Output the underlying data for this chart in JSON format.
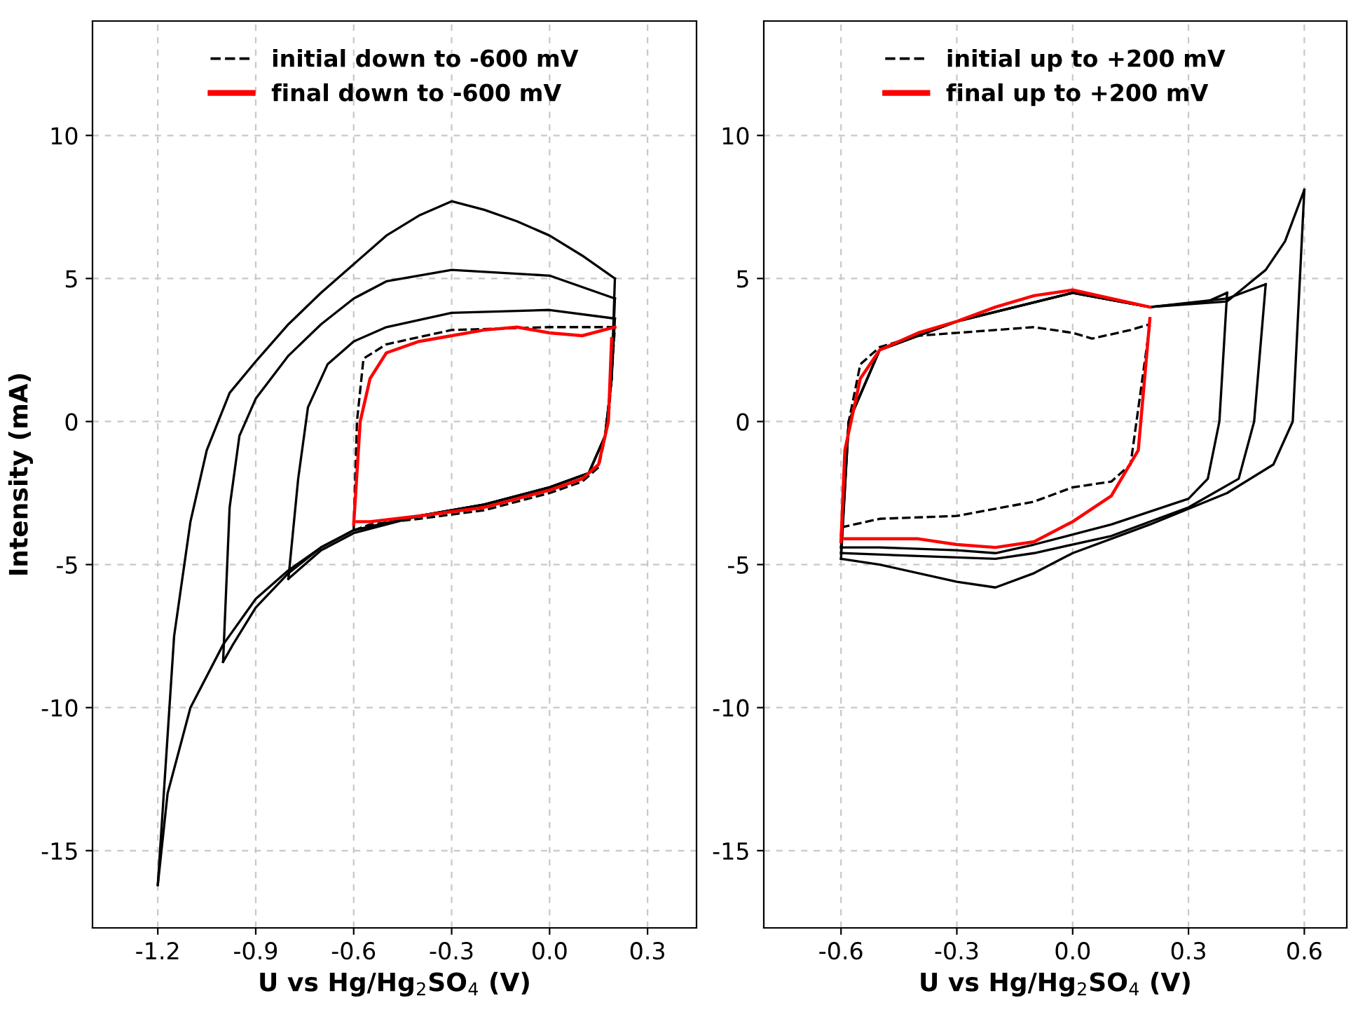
{
  "chart_data": [
    {
      "type": "line",
      "xlabel": "U vs Hg/Hg$_{2}$SO$_{4}$ (V)",
      "ylabel": "Intensity (mA)",
      "xlim": [
        -1.4,
        0.45
      ],
      "ylim": [
        -17.7,
        14
      ],
      "xticks": [
        -1.2,
        -0.9,
        -0.6,
        -0.3,
        {
          "value": 0,
          "label": "0.0"
        },
        0.3
      ],
      "yticks": [
        -15,
        -10,
        -5,
        0,
        5,
        10
      ],
      "grid": true,
      "legend": "top",
      "line_style": "solid",
      "marker": "none",
      "series": [
        {
          "color": "#000000",
          "x": [
            -1.2,
            -1.15,
            -1.1,
            -1.05,
            -0.98,
            -0.9,
            -0.8,
            -0.7,
            -0.6,
            -0.5,
            -0.4,
            -0.3,
            -0.2,
            -0.1,
            0,
            0.1,
            0.2
          ],
          "values": [
            -16.2,
            -7.5,
            -3.5,
            -1.0,
            1.0,
            2.1,
            3.4,
            4.5,
            5.5,
            6.5,
            7.2,
            7.7,
            7.4,
            7.0,
            6.5,
            5.8,
            5.0
          ]
        },
        {
          "color": "#000000",
          "x": [
            -1.2,
            -1.17,
            -1.1,
            -1.0,
            -0.9,
            -0.8,
            -0.7,
            -0.6,
            -0.4,
            -0.2,
            0,
            0.12,
            0.17,
            0.19,
            0.2
          ],
          "values": [
            -16.2,
            -13,
            -10,
            -7.8,
            -6.2,
            -5.2,
            -4.4,
            -3.8,
            -3.3,
            -2.9,
            -2.3,
            -1.8,
            -0.5,
            1.5,
            5.0
          ]
        },
        {
          "color": "#000000",
          "x": [
            -1.0,
            -0.98,
            -0.95,
            -0.9,
            -0.8,
            -0.7,
            -0.6,
            -0.5,
            -0.3,
            0,
            0.2
          ],
          "values": [
            -8.4,
            -3,
            -0.5,
            0.8,
            2.3,
            3.4,
            4.3,
            4.9,
            5.3,
            5.1,
            4.3
          ]
        },
        {
          "color": "#000000",
          "x": [
            -1.0,
            -0.97,
            -0.9,
            -0.8,
            -0.7,
            -0.6,
            -0.4,
            -0.2,
            0,
            0.12,
            0.17,
            0.19,
            0.2
          ],
          "values": [
            -8.4,
            -7.8,
            -6.5,
            -5.3,
            -4.4,
            -3.8,
            -3.3,
            -2.9,
            -2.3,
            -1.8,
            -0.5,
            1.5,
            4.3
          ]
        },
        {
          "color": "#000000",
          "x": [
            -0.8,
            -0.77,
            -0.74,
            -0.68,
            -0.6,
            -0.5,
            -0.3,
            0,
            0.2
          ],
          "values": [
            -5.5,
            -2,
            0.5,
            2.0,
            2.8,
            3.3,
            3.8,
            3.9,
            3.6
          ]
        },
        {
          "color": "#000000",
          "x": [
            -0.8,
            -0.75,
            -0.7,
            -0.6,
            -0.4,
            -0.2,
            0,
            0.12,
            0.17,
            0.19,
            0.2
          ],
          "values": [
            -5.5,
            -5.0,
            -4.5,
            -3.9,
            -3.3,
            -2.9,
            -2.3,
            -1.8,
            -0.5,
            1.5,
            3.6
          ]
        },
        {
          "name": "initial down to -600 mV",
          "color": "#000000",
          "line_style": "dashed",
          "x": [
            -0.6,
            -0.59,
            -0.57,
            -0.5,
            -0.3,
            0,
            0.2
          ],
          "values": [
            -3.8,
            0,
            2.2,
            2.7,
            3.2,
            3.3,
            3.3
          ]
        },
        {
          "color": "#000000",
          "line_style": "dashed",
          "x": [
            -0.6,
            -0.55,
            -0.4,
            -0.2,
            0,
            0.1,
            0.15,
            0.18,
            0.2
          ],
          "values": [
            -3.8,
            -3.6,
            -3.4,
            -3.1,
            -2.5,
            -2.1,
            -1.6,
            0,
            3.3
          ]
        },
        {
          "name": "final down to -600 mV",
          "color": "#ff0000",
          "x": [
            -0.6,
            -0.58,
            -0.55,
            -0.5,
            -0.4,
            -0.3,
            -0.2,
            -0.1,
            0,
            0.1,
            0.2
          ],
          "values": [
            -3.6,
            0,
            1.5,
            2.4,
            2.8,
            3.0,
            3.2,
            3.3,
            3.1,
            3.0,
            3.3
          ]
        },
        {
          "color": "#ff0000",
          "x": [
            -0.59,
            -0.55,
            -0.4,
            -0.2,
            0,
            0.1,
            0.15,
            0.18,
            0.19
          ],
          "values": [
            -3.5,
            -3.5,
            -3.3,
            -3.0,
            -2.4,
            -2.0,
            -1.5,
            0,
            2.9
          ]
        }
      ]
    },
    {
      "type": "line",
      "xlabel": "U vs Hg/Hg$_{2}$SO$_{4}$ (V)",
      "xlim": [
        -0.8,
        0.71
      ],
      "ylim": [
        -17.7,
        14
      ],
      "xticks": [
        -0.6,
        -0.3,
        {
          "value": 0,
          "label": "0.0"
        },
        0.3,
        0.6
      ],
      "yticks": [
        -15,
        -10,
        -5,
        0,
        5,
        10
      ],
      "grid": true,
      "legend": "top",
      "line_style": "solid",
      "marker": "none",
      "series": [
        {
          "color": "#000000",
          "x": [
            -0.6,
            -0.58,
            -0.5,
            -0.3,
            0,
            0.2,
            0.35,
            0.4
          ],
          "values": [
            -4.4,
            0,
            2.5,
            3.5,
            4.5,
            4.0,
            4.2,
            4.5
          ]
        },
        {
          "color": "#000000",
          "x": [
            -0.6,
            -0.5,
            -0.3,
            -0.2,
            -0.1,
            0.1,
            0.3,
            0.35,
            0.38,
            0.4
          ],
          "values": [
            -4.4,
            -4.4,
            -4.5,
            -4.6,
            -4.3,
            -3.6,
            -2.7,
            -2,
            0,
            4.5
          ]
        },
        {
          "color": "#000000",
          "x": [
            -0.6,
            -0.58,
            -0.5,
            -0.3,
            0,
            0.2,
            0.4,
            0.5
          ],
          "values": [
            -4.6,
            0,
            2.5,
            3.5,
            4.5,
            4.0,
            4.3,
            4.8
          ]
        },
        {
          "color": "#000000",
          "x": [
            -0.6,
            -0.4,
            -0.2,
            -0.1,
            0.1,
            0.3,
            0.43,
            0.47,
            0.5
          ],
          "values": [
            -4.6,
            -4.7,
            -4.8,
            -4.6,
            -4.0,
            -3.0,
            -2.0,
            0,
            4.8
          ]
        },
        {
          "color": "#000000",
          "x": [
            -0.6,
            -0.58,
            -0.5,
            -0.3,
            0,
            0.2,
            0.4,
            0.5,
            0.55,
            0.6
          ],
          "values": [
            -4.8,
            0,
            2.5,
            3.5,
            4.5,
            4.0,
            4.2,
            5.3,
            6.3,
            8.1
          ]
        },
        {
          "color": "#000000",
          "x": [
            -0.6,
            -0.5,
            -0.3,
            -0.2,
            -0.1,
            0,
            0.2,
            0.4,
            0.52,
            0.57,
            0.6
          ],
          "values": [
            -4.8,
            -5.0,
            -5.6,
            -5.8,
            -5.3,
            -4.6,
            -3.6,
            -2.5,
            -1.5,
            0,
            8.1
          ]
        },
        {
          "name": "initial up to +200 mV",
          "color": "#000000",
          "line_style": "dashed",
          "x": [
            -0.6,
            -0.58,
            -0.55,
            -0.5,
            -0.4,
            -0.2,
            -0.1,
            0,
            0.05,
            0.15,
            0.2
          ],
          "values": [
            -4.0,
            0,
            2.0,
            2.6,
            3.0,
            3.2,
            3.3,
            3.1,
            2.9,
            3.2,
            3.4
          ]
        },
        {
          "color": "#000000",
          "line_style": "dashed",
          "x": [
            -0.6,
            -0.5,
            -0.3,
            -0.1,
            0,
            0.1,
            0.15,
            0.2
          ],
          "values": [
            -3.7,
            -3.4,
            -3.3,
            -2.8,
            -2.3,
            -2.1,
            -1.5,
            3.4
          ]
        },
        {
          "name": "final up to +200 mV",
          "color": "#ff0000",
          "x": [
            -0.6,
            -0.59,
            -0.55,
            -0.5,
            -0.4,
            -0.3,
            -0.2,
            -0.1,
            0,
            0.1,
            0.2
          ],
          "values": [
            -4.2,
            -1,
            1.5,
            2.5,
            3.1,
            3.5,
            4.0,
            4.4,
            4.6,
            4.3,
            4.0
          ]
        },
        {
          "color": "#ff0000",
          "x": [
            -0.59,
            -0.5,
            -0.4,
            -0.3,
            -0.2,
            -0.1,
            0,
            0.1,
            0.17,
            0.2
          ],
          "values": [
            -4.1,
            -4.1,
            -4.1,
            -4.3,
            -4.4,
            -4.2,
            -3.5,
            -2.6,
            -1,
            3.6
          ]
        }
      ]
    }
  ]
}
